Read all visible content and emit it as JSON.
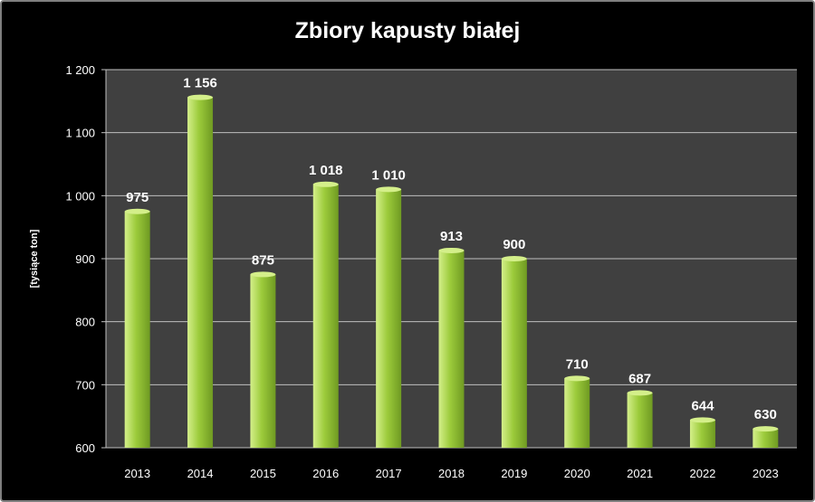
{
  "chart_data": {
    "type": "bar",
    "title": "Zbiory kapusty białej",
    "xlabel": "",
    "ylabel": "[tysiące ton]",
    "categories": [
      "2013",
      "2014",
      "2015",
      "2016",
      "2017",
      "2018",
      "2019",
      "2020",
      "2021",
      "2022",
      "2023"
    ],
    "values": [
      975,
      1156,
      875,
      1018,
      1010,
      913,
      900,
      710,
      687,
      644,
      630
    ],
    "value_labels": [
      "975",
      "1 156",
      "875",
      "1 018",
      "1 010",
      "913",
      "900",
      "710",
      "687",
      "644",
      "630"
    ],
    "ylim": [
      600,
      1200
    ],
    "yticks": [
      600,
      700,
      800,
      900,
      1000,
      1100,
      1200
    ],
    "ytick_labels": [
      "600",
      "700",
      "800",
      "900",
      "1 000",
      "1 100",
      "1 200"
    ],
    "grid": true,
    "legend": "none",
    "colors": {
      "background": "#000000",
      "plot_area": "#404040",
      "gridline": "#bfbfbf",
      "bar_light": "#d4ef8a",
      "bar_mid": "#9ccb3b",
      "bar_dark": "#6f9a22",
      "text": "#ffffff"
    }
  }
}
